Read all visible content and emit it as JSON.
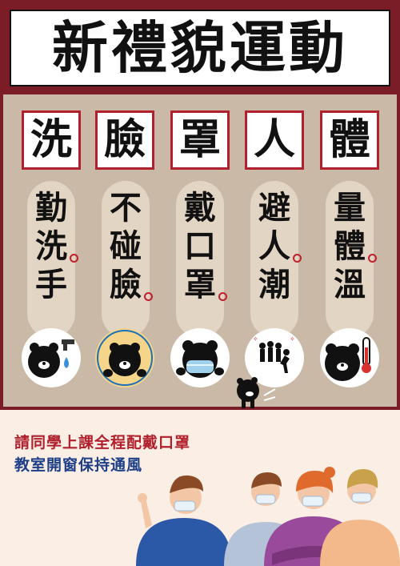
{
  "title": "新禮貌運動",
  "keywords": [
    "洗",
    "臉",
    "罩",
    "人",
    "體"
  ],
  "columns": [
    {
      "lines": [
        "勤",
        "洗",
        "手"
      ],
      "icon": "bear-washing-hands-icon"
    },
    {
      "lines": [
        "不",
        "碰",
        "臉"
      ],
      "icon": "bear-no-touch-face-icon"
    },
    {
      "lines": [
        "戴",
        "口",
        "罩"
      ],
      "icon": "bear-wearing-mask-icon"
    },
    {
      "lines": [
        "避",
        "人",
        "潮"
      ],
      "icon": "crowd-avoid-icon"
    },
    {
      "lines": [
        "量",
        "體",
        "溫"
      ],
      "icon": "bear-thermometer-icon"
    }
  ],
  "notice": {
    "line1": "請同學上課全程配戴口罩",
    "line2": "教室開窗保持通風"
  },
  "colors": {
    "maroon": "#7a1d26",
    "red": "#b0202d",
    "tan": "#c9b9a6",
    "blue": "#1d3f88"
  }
}
